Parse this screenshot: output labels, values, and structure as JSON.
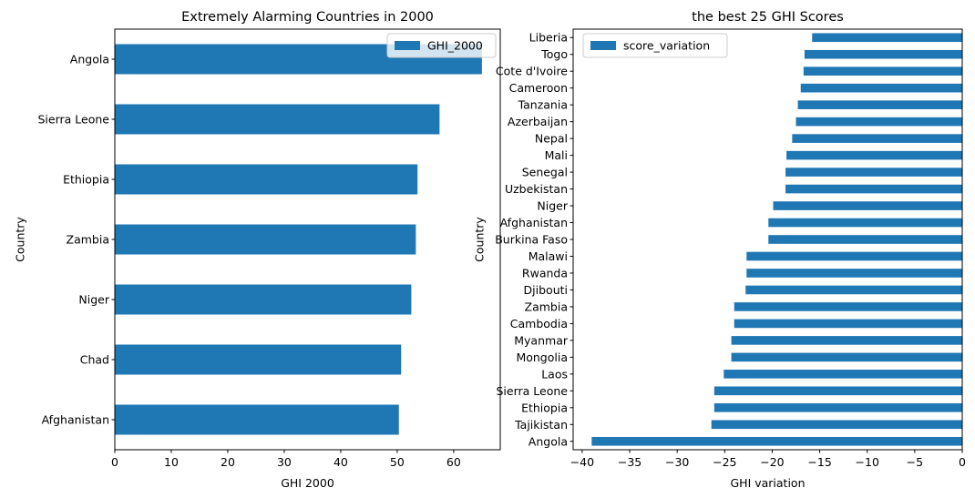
{
  "chart_data": [
    {
      "type": "bar",
      "orientation": "horizontal",
      "title": "Extremely Alarming Countries in 2000",
      "xlabel": "GHI 2000",
      "ylabel": "Country",
      "categories": [
        "Afghanistan",
        "Chad",
        "Niger",
        "Zambia",
        "Ethiopia",
        "Sierra Leone",
        "Angola"
      ],
      "series": [
        {
          "name": "GHI_2000",
          "color": "#1f77b4",
          "values": [
            50.3,
            50.7,
            52.5,
            53.3,
            53.6,
            57.5,
            65.0
          ]
        }
      ],
      "xlim": [
        0,
        68.25
      ],
      "xticks": [
        "0",
        "10",
        "20",
        "30",
        "40",
        "50",
        "60"
      ],
      "legend": "top-right",
      "grid": false
    },
    {
      "type": "bar",
      "orientation": "horizontal",
      "title": "the best 25 GHI Scores",
      "xlabel": "GHI variation",
      "ylabel": "Country",
      "categories": [
        "Angola",
        "Tajikistan",
        "Ethiopia",
        "Sierra Leone",
        "Laos",
        "Mongolia",
        "Myanmar",
        "Cambodia",
        "Zambia",
        "Djibouti",
        "Rwanda",
        "Malawi",
        "Burkina Faso",
        "Afghanistan",
        "Niger",
        "Uzbekistan",
        "Senegal",
        "Mali",
        "Nepal",
        "Azerbaijan",
        "Tanzania",
        "Cameroon",
        "Cote d'Ivoire",
        "Togo",
        "Liberia"
      ],
      "series": [
        {
          "name": "score_variation",
          "color": "#1f77b4",
          "values": [
            -39.0,
            -26.4,
            -26.1,
            -26.1,
            -25.1,
            -24.3,
            -24.3,
            -24.0,
            -24.0,
            -22.8,
            -22.7,
            -22.7,
            -20.4,
            -20.4,
            -19.9,
            -18.6,
            -18.6,
            -18.5,
            -17.9,
            -17.5,
            -17.3,
            -17.0,
            -16.7,
            -16.6,
            -15.8
          ]
        }
      ],
      "xlim": [
        -40.95,
        0
      ],
      "xticks": [
        "−40",
        "−35",
        "−30",
        "−25",
        "−20",
        "−15",
        "−10",
        "−5",
        "0"
      ],
      "legend": "top-left",
      "grid": false
    }
  ]
}
